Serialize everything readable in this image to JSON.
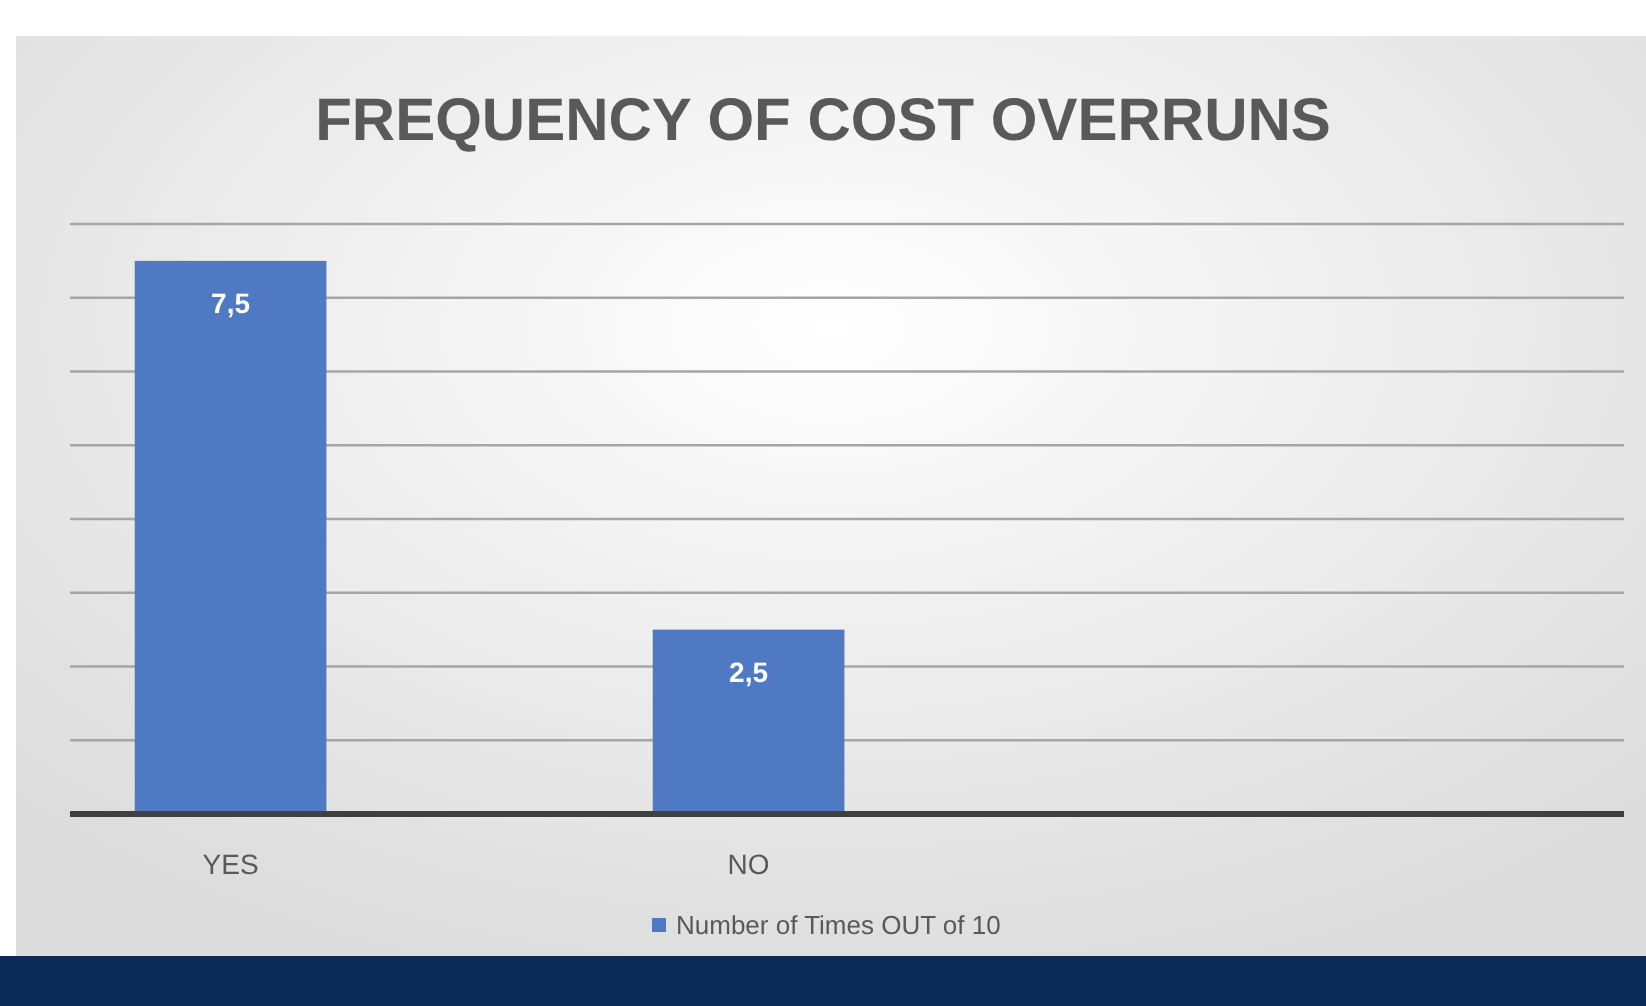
{
  "chart_data": {
    "type": "bar",
    "title": "FREQUENCY OF COST OVERRUNS",
    "categories": [
      "YES",
      "NO",
      null
    ],
    "series": [
      {
        "name": "Number of Times OUT of 10",
        "color": "#4f7ac3",
        "values": [
          7.5,
          2.5,
          null
        ],
        "value_labels": [
          "7,5",
          "2,5",
          null
        ]
      }
    ],
    "ylim": [
      0,
      8
    ],
    "yticks": [
      {
        "value": 0,
        "label": null
      },
      {
        "value": 1,
        "label": null
      },
      {
        "value": 2,
        "label": null
      },
      {
        "value": 3,
        "label": null
      },
      {
        "value": 4,
        "label": null
      },
      {
        "value": 5,
        "label": null
      },
      {
        "value": 6,
        "label": null
      },
      {
        "value": 7,
        "label": null
      },
      {
        "value": 8,
        "label": null
      }
    ],
    "tick_labels": "x",
    "grid": "y",
    "legend": "bottom"
  }
}
